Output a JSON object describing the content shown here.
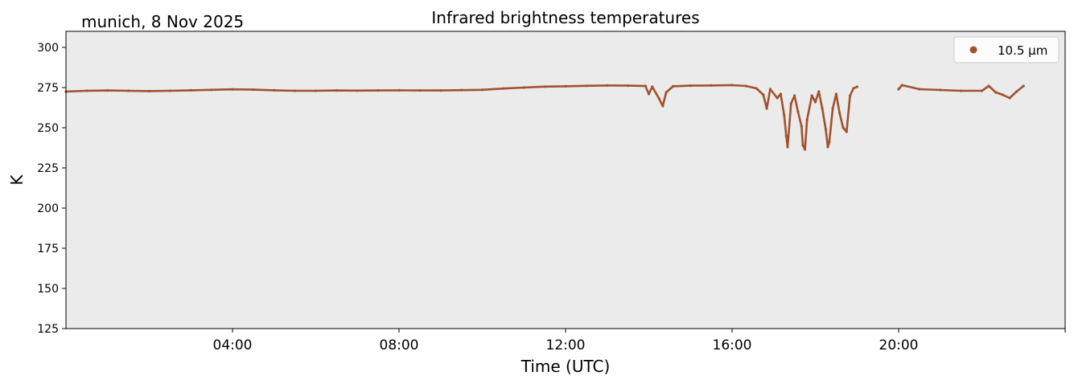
{
  "corner_label": "munich, 8 Nov 2025",
  "chart_data": {
    "type": "scatter",
    "title": "Infrared brightness temperatures",
    "xlabel": "Time (UTC)",
    "ylabel": "K",
    "xlim_hours": [
      0,
      24
    ],
    "ylim": [
      125,
      310
    ],
    "x_ticks": [
      {
        "hour": 4,
        "label": "04:00"
      },
      {
        "hour": 8,
        "label": "08:00"
      },
      {
        "hour": 12,
        "label": "12:00"
      },
      {
        "hour": 16,
        "label": "16:00"
      },
      {
        "hour": 20,
        "label": "20:00"
      },
      {
        "hour": 24,
        "label": ""
      }
    ],
    "y_ticks": [
      125,
      150,
      175,
      200,
      225,
      250,
      275,
      300
    ],
    "grid": false,
    "legend_position": "top-right",
    "background_color": "#ebebeb",
    "series": [
      {
        "name": "10.5 µm",
        "color": "#a0522d",
        "points": [
          [
            "00:00",
            272.5
          ],
          [
            "00:30",
            273.0
          ],
          [
            "01:00",
            273.2
          ],
          [
            "01:30",
            273.0
          ],
          [
            "02:00",
            272.8
          ],
          [
            "02:30",
            273.0
          ],
          [
            "03:00",
            273.3
          ],
          [
            "03:30",
            273.6
          ],
          [
            "04:00",
            273.9
          ],
          [
            "04:30",
            273.7
          ],
          [
            "05:00",
            273.3
          ],
          [
            "05:30",
            273.0
          ],
          [
            "06:00",
            273.0
          ],
          [
            "06:30",
            273.2
          ],
          [
            "07:00",
            273.1
          ],
          [
            "07:30",
            273.2
          ],
          [
            "08:00",
            273.3
          ],
          [
            "08:30",
            273.2
          ],
          [
            "09:00",
            273.2
          ],
          [
            "09:30",
            273.4
          ],
          [
            "10:00",
            273.6
          ],
          [
            "10:30",
            274.4
          ],
          [
            "11:00",
            275.0
          ],
          [
            "11:30",
            275.6
          ],
          [
            "12:00",
            275.8
          ],
          [
            "12:30",
            276.1
          ],
          [
            "13:00",
            276.3
          ],
          [
            "13:30",
            276.2
          ],
          [
            "13:55",
            276.0
          ],
          [
            "14:00",
            271.0
          ],
          [
            "14:05",
            275.5
          ],
          [
            "14:15",
            268.0
          ],
          [
            "14:20",
            263.5
          ],
          [
            "14:25",
            272.0
          ],
          [
            "14:35",
            275.8
          ],
          [
            "15:00",
            276.2
          ],
          [
            "15:30",
            276.3
          ],
          [
            "16:00",
            276.5
          ],
          [
            "16:20",
            276.0
          ],
          [
            "16:35",
            274.5
          ],
          [
            "16:45",
            270.5
          ],
          [
            "16:50",
            262.0
          ],
          [
            "16:55",
            274.0
          ],
          [
            "17:05",
            268.5
          ],
          [
            "17:10",
            271.0
          ],
          [
            "17:15",
            258.0
          ],
          [
            "17:18",
            245.0
          ],
          [
            "17:20",
            238.0
          ],
          [
            "17:25",
            265.0
          ],
          [
            "17:30",
            270.0
          ],
          [
            "17:35",
            260.0
          ],
          [
            "17:40",
            251.0
          ],
          [
            "17:42",
            239.0
          ],
          [
            "17:45",
            236.5
          ],
          [
            "17:48",
            255.0
          ],
          [
            "17:55",
            270.0
          ],
          [
            "18:00",
            266.0
          ],
          [
            "18:05",
            272.5
          ],
          [
            "18:10",
            262.0
          ],
          [
            "18:15",
            249.0
          ],
          [
            "18:18",
            238.0
          ],
          [
            "18:20",
            241.0
          ],
          [
            "18:25",
            262.0
          ],
          [
            "18:30",
            271.0
          ],
          [
            "18:35",
            259.0
          ],
          [
            "18:40",
            250.0
          ],
          [
            "18:45",
            247.5
          ],
          [
            "18:50",
            270.0
          ],
          [
            "18:55",
            274.5
          ],
          [
            "19:00",
            275.5
          ],
          [
            "20:00",
            274.0
          ],
          [
            "20:05",
            276.5
          ],
          [
            "20:30",
            274.0
          ],
          [
            "21:00",
            273.5
          ],
          [
            "21:30",
            273.0
          ],
          [
            "22:00",
            273.0
          ],
          [
            "22:10",
            276.0
          ],
          [
            "22:20",
            272.0
          ],
          [
            "22:30",
            270.5
          ],
          [
            "22:40",
            268.5
          ],
          [
            "22:50",
            272.5
          ],
          [
            "23:00",
            276.0
          ]
        ]
      }
    ]
  }
}
